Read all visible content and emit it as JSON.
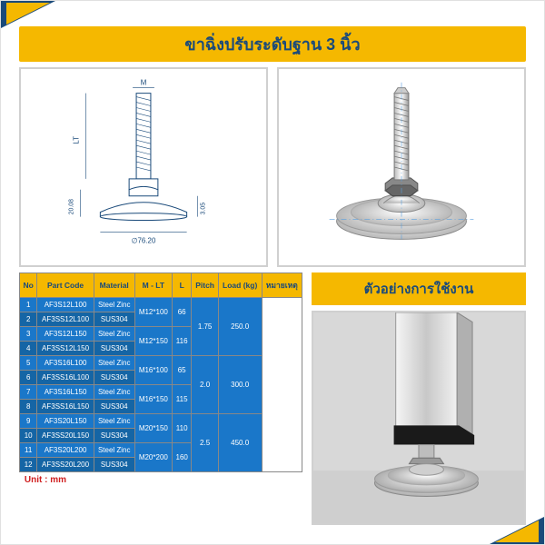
{
  "title": "ขาฉิ่งปรับระดับฐาน 3 นิ้ว",
  "diagram_labels": {
    "M": "M",
    "LT": "LT",
    "h": "20.08",
    "r": "3.05",
    "dia": "∅76.20"
  },
  "usage_title": "ตัวอย่างการใช้งาน",
  "unit_note": "Unit : mm",
  "columns": [
    "No",
    "Part Code",
    "Material",
    "M - LT",
    "L",
    "Pitch",
    "Load (kg)",
    "หมายเหตุ"
  ],
  "rows": [
    {
      "no": "1",
      "code": "AF3S12L100",
      "mat": "Steel Zinc"
    },
    {
      "no": "2",
      "code": "AF3SS12L100",
      "mat": "SUS304"
    },
    {
      "no": "3",
      "code": "AF3S12L150",
      "mat": "Steel Zinc"
    },
    {
      "no": "4",
      "code": "AF3SS12L150",
      "mat": "SUS304"
    },
    {
      "no": "5",
      "code": "AF3S16L100",
      "mat": "Steel Zinc"
    },
    {
      "no": "6",
      "code": "AF3SS16L100",
      "mat": "SUS304"
    },
    {
      "no": "7",
      "code": "AF3S16L150",
      "mat": "Steel Zinc"
    },
    {
      "no": "8",
      "code": "AF3SS16L150",
      "mat": "SUS304"
    },
    {
      "no": "9",
      "code": "AF3S20L150",
      "mat": "Steel Zinc"
    },
    {
      "no": "10",
      "code": "AF3SS20L150",
      "mat": "SUS304"
    },
    {
      "no": "11",
      "code": "AF3S20L200",
      "mat": "Steel Zinc"
    },
    {
      "no": "12",
      "code": "AF3SS20L200",
      "mat": "SUS304"
    }
  ],
  "mlt": [
    "M12*100",
    "M12*150",
    "M16*100",
    "M16*150",
    "M20*150",
    "M20*200"
  ],
  "L": [
    "66",
    "116",
    "65",
    "115",
    "110",
    "160"
  ],
  "pitch": [
    "1.75",
    "2.0",
    "2.5"
  ],
  "load": [
    "250.0",
    "300.0",
    "450.0"
  ],
  "colors": {
    "accent": "#f5b800",
    "primary": "#1a4a7a",
    "row": "#1a77c9",
    "row_alt": "#1565a5",
    "border": "#888",
    "unit": "#d02020"
  }
}
